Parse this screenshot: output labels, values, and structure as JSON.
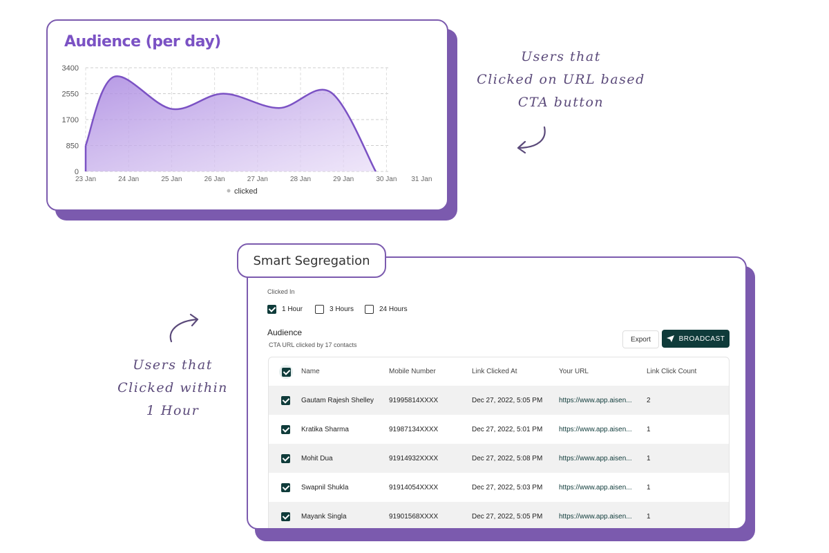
{
  "chart_card": {
    "title": "Audience (per day)"
  },
  "chart_data": {
    "type": "area",
    "title": "Audience (per day)",
    "x_tick_labels": [
      "23 Jan",
      "24 Jan",
      "25 Jan",
      "26 Jan",
      "27 Jan",
      "28 Jan",
      "29 Jan",
      "30 Jan",
      "31 Jan"
    ],
    "y_ticks": [
      0,
      850,
      1700,
      2550,
      3400
    ],
    "ylim": [
      0,
      3400
    ],
    "xlim_day": [
      23,
      31
    ],
    "series": [
      {
        "name": "clicked",
        "x_day": [
          23,
          23.65,
          25,
          26.2,
          27.5,
          28.7,
          29.75
        ],
        "values": [
          850,
          3100,
          2050,
          2550,
          2080,
          2600,
          0
        ]
      }
    ],
    "legend": "bottom",
    "grid": true,
    "color": "#7b52c4"
  },
  "annotations": {
    "top": [
      "Users that",
      "Clicked on URL based",
      "CTA button"
    ],
    "left": [
      "Users that",
      "Clicked within",
      "1 Hour"
    ]
  },
  "segregation": {
    "tab_title": "Smart Segregation",
    "clicked_in_label": "Clicked In",
    "options": [
      {
        "label": "1 Hour",
        "checked": true
      },
      {
        "label": "3 Hours",
        "checked": false
      },
      {
        "label": "24 Hours",
        "checked": false
      }
    ],
    "audience_title": "Audience",
    "audience_sub": "CTA URL clicked by 17 contacts",
    "export_label": "Export",
    "broadcast_label": "BROADCAST",
    "columns": [
      "Name",
      "Mobile Number",
      "Link Clicked At",
      "Your URL",
      "Link Click Count"
    ],
    "rows": [
      [
        "Gautam Rajesh Shelley",
        "91995814XXXX",
        "Dec 27, 2022, 5:05 PM",
        "https://www.app.aisen...",
        "2"
      ],
      [
        "Kratika Sharma",
        "91987134XXXX",
        "Dec 27, 2022, 5:01 PM",
        "https://www.app.aisen...",
        "1"
      ],
      [
        "Mohit Dua",
        "91914932XXXX",
        "Dec 27, 2022, 5:08 PM",
        "https://www.app.aisen...",
        "1"
      ],
      [
        "Swapnil Shukla",
        "91914054XXXX",
        "Dec 27, 2022, 5:03 PM",
        "https://www.app.aisen...",
        "1"
      ],
      [
        "Mayank Singla",
        "91901568XXXX",
        "Dec 27, 2022, 5:05 PM",
        "https://www.app.aisen...",
        "1"
      ]
    ]
  }
}
